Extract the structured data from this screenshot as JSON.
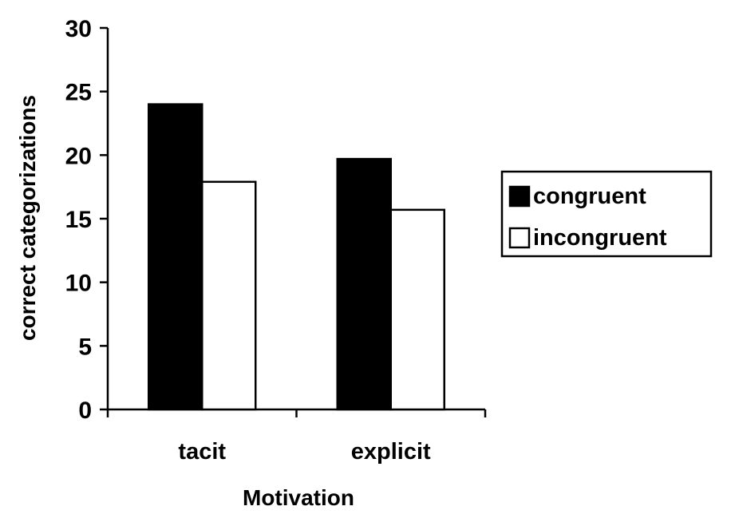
{
  "chart_data": {
    "type": "bar",
    "title": "",
    "xlabel": "Motivation",
    "ylabel": "correct categorizations",
    "categories": [
      "tacit",
      "explicit"
    ],
    "series": [
      {
        "name": "congruent",
        "values": [
          24,
          19.7
        ],
        "color": "#000000"
      },
      {
        "name": "incongruent",
        "values": [
          17.9,
          15.7
        ],
        "color": "#ffffff"
      }
    ],
    "ylim": [
      0,
      30
    ],
    "yticks": [
      0,
      5,
      10,
      15,
      20,
      25,
      30
    ],
    "grid": false,
    "legend_position": "right"
  }
}
